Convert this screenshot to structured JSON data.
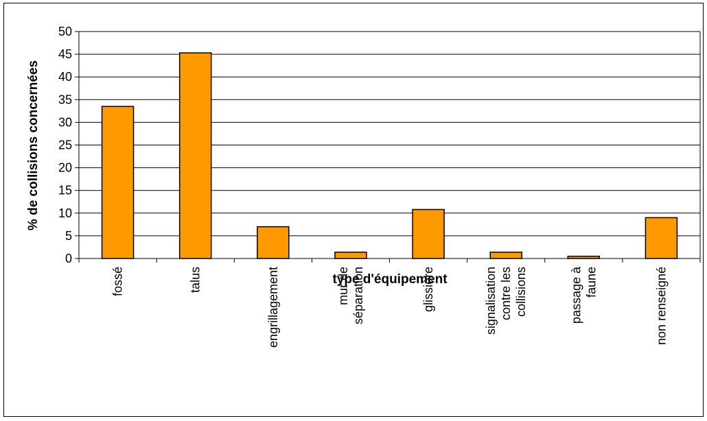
{
  "chart_data": {
    "type": "bar",
    "title": "",
    "xlabel": "type d'équipement",
    "ylabel": "% de collisions concernées",
    "categories": [
      "fossé",
      "talus",
      "engrillagement",
      "mur de séparation",
      "glissière",
      "signalisation contre les collisions",
      "passage à faune",
      "non renseigné"
    ],
    "values": [
      33.5,
      45.3,
      7.0,
      1.4,
      10.8,
      1.4,
      0.5,
      9.0
    ],
    "ylim": [
      0,
      50
    ],
    "yticks": [
      0,
      5,
      10,
      15,
      20,
      25,
      30,
      35,
      40,
      45,
      50
    ],
    "grid": true,
    "legend": "none",
    "colors": {
      "bar_fill": "#FF9900",
      "bar_stroke": "#000000",
      "gridline": "#000000",
      "axis": "#000000"
    }
  }
}
